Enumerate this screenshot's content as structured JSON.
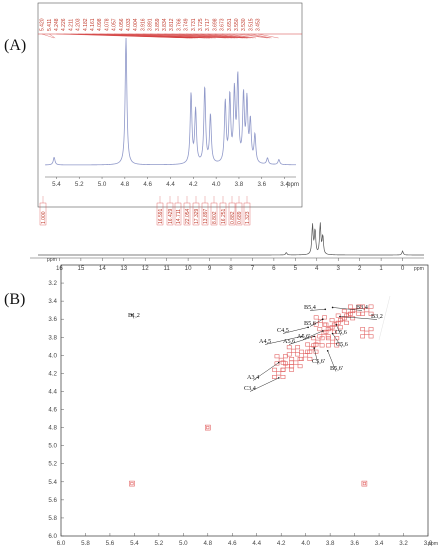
{
  "panels": {
    "a_label": "(A)",
    "b_label": "(B)"
  },
  "colors": {
    "spectrum": "#8f98c9",
    "annotation": "#d33c3c",
    "cross_peak": "#e05a5a",
    "axis": "#555555"
  },
  "chart_data": [
    {
      "type": "line",
      "subtype": "1H NMR spectrum (expanded inset)",
      "x_unit": "ppm",
      "x_reversed": true,
      "xlim": [
        5.5,
        3.3
      ],
      "x_ticks": [
        "5.4",
        "5.2",
        "5.0",
        "4.8",
        "4.6",
        "4.4",
        "4.2",
        "4.0",
        "3.8",
        "3.6",
        "3.4"
      ],
      "peak_labels": [
        "5.420",
        "5.411",
        "4.248",
        "4.226",
        "4.211",
        "4.203",
        "4.182",
        "4.161",
        "4.098",
        "4.078",
        "4.057",
        "4.056",
        "4.033",
        "4.004",
        "3.916",
        "3.891",
        "3.859",
        "3.834",
        "3.812",
        "3.766",
        "3.749",
        "3.731",
        "3.725",
        "3.717",
        "3.698",
        "3.673",
        "3.651",
        "3.550",
        "3.530",
        "3.515",
        "3.453"
      ],
      "integrals": [
        "1.000",
        "16.591",
        "16.429",
        "14.711",
        "22.054",
        "17.329",
        "13.897",
        "8.802",
        "16.251",
        "0.882",
        "0.689",
        "1.323"
      ],
      "peaks": [
        {
          "x": 5.42,
          "h": 0.06
        },
        {
          "x": 4.79,
          "h": 1.0
        },
        {
          "x": 4.22,
          "h": 0.55
        },
        {
          "x": 4.18,
          "h": 0.42
        },
        {
          "x": 4.1,
          "h": 0.6
        },
        {
          "x": 4.05,
          "h": 0.38
        },
        {
          "x": 3.92,
          "h": 0.48
        },
        {
          "x": 3.88,
          "h": 0.52
        },
        {
          "x": 3.84,
          "h": 0.55
        },
        {
          "x": 3.81,
          "h": 0.66
        },
        {
          "x": 3.76,
          "h": 0.52
        },
        {
          "x": 3.73,
          "h": 0.48
        },
        {
          "x": 3.7,
          "h": 0.32
        },
        {
          "x": 3.66,
          "h": 0.22
        },
        {
          "x": 3.55,
          "h": 0.05
        },
        {
          "x": 3.45,
          "h": 0.04
        }
      ]
    },
    {
      "type": "line",
      "subtype": "1H NMR spectrum (full range)",
      "x_unit": "ppm",
      "x_reversed": true,
      "xlim": [
        17,
        -1
      ],
      "x_ticks": [
        "16",
        "15",
        "14",
        "13",
        "12",
        "11",
        "10",
        "9",
        "8",
        "7",
        "6",
        "5",
        "4",
        "3",
        "2",
        "1",
        "0"
      ],
      "peaks": [
        {
          "x": 5.42,
          "h": 0.05
        },
        {
          "x": 4.2,
          "h": 0.6
        },
        {
          "x": 4.08,
          "h": 0.5
        },
        {
          "x": 3.84,
          "h": 0.62
        },
        {
          "x": 3.72,
          "h": 0.38
        },
        {
          "x": 0.0,
          "h": 0.08
        }
      ]
    },
    {
      "type": "scatter",
      "subtype": "2D COSY spectrum",
      "x_unit": "ppm",
      "y_unit": "ppm",
      "xlim": [
        6.0,
        3.0
      ],
      "ylim": [
        3.0,
        6.0
      ],
      "x_ticks": [
        "6.0",
        "5.8",
        "5.6",
        "5.4",
        "5.2",
        "5.0",
        "4.8",
        "4.6",
        "4.4",
        "4.2",
        "4.0",
        "3.8",
        "3.6",
        "3.4",
        "3.2",
        "3.0"
      ],
      "y_ticks": [
        "3.2",
        "3.4",
        "3.6",
        "3.8",
        "4.0",
        "4.2",
        "4.4",
        "4.6",
        "4.8",
        "5.0",
        "5.2",
        "5.4",
        "5.6",
        "5.8",
        "6.0"
      ],
      "diagonal_peaks": [
        {
          "x": 5.42,
          "y": 5.42
        },
        {
          "x": 4.8,
          "y": 4.8
        },
        {
          "x": 3.52,
          "y": 5.42
        }
      ],
      "cross_peak_clusters": [
        {
          "x": 4.2,
          "y": 4.05
        },
        {
          "x": 4.15,
          "y": 4.12
        },
        {
          "x": 4.08,
          "y": 4.08
        },
        {
          "x": 4.0,
          "y": 4.0
        },
        {
          "x": 3.95,
          "y": 3.92
        },
        {
          "x": 3.9,
          "y": 3.85
        },
        {
          "x": 3.85,
          "y": 3.75
        },
        {
          "x": 3.8,
          "y": 3.7
        },
        {
          "x": 3.75,
          "y": 3.65
        },
        {
          "x": 3.7,
          "y": 3.6
        },
        {
          "x": 3.65,
          "y": 3.55
        },
        {
          "x": 3.6,
          "y": 3.5
        },
        {
          "x": 3.5,
          "y": 3.5
        },
        {
          "x": 3.5,
          "y": 3.75
        },
        {
          "x": 4.22,
          "y": 4.2
        },
        {
          "x": 4.1,
          "y": 3.95
        },
        {
          "x": 3.88,
          "y": 3.62
        },
        {
          "x": 3.78,
          "y": 3.85
        }
      ],
      "assignments": [
        {
          "label": "B1,2",
          "x": 5.42,
          "y": 3.55
        },
        {
          "label": "B3,4",
          "x": 3.78,
          "y": 3.47
        },
        {
          "label": "B5,4",
          "x": 3.84,
          "y": 3.49
        },
        {
          "label": "B3,2",
          "x": 3.72,
          "y": 3.57
        },
        {
          "label": "B5,6",
          "x": 3.86,
          "y": 3.6
        },
        {
          "label": "C5,6",
          "x": 3.75,
          "y": 3.66
        },
        {
          "label": "C4,5",
          "x": 3.98,
          "y": 3.69
        },
        {
          "label": "A5,6'",
          "x": 3.86,
          "y": 3.73
        },
        {
          "label": "C5,6",
          "x": 3.78,
          "y": 3.76
        },
        {
          "label": "A4,5",
          "x": 4.03,
          "y": 3.79
        },
        {
          "label": "A5,6",
          "x": 3.93,
          "y": 3.79
        },
        {
          "label": "C5,6'",
          "x": 3.93,
          "y": 3.92
        },
        {
          "label": "B5,6'",
          "x": 3.82,
          "y": 3.95
        },
        {
          "label": "A3,4",
          "x": 4.22,
          "y": 4.08
        },
        {
          "label": "C3,4",
          "x": 4.22,
          "y": 4.25
        }
      ]
    }
  ]
}
